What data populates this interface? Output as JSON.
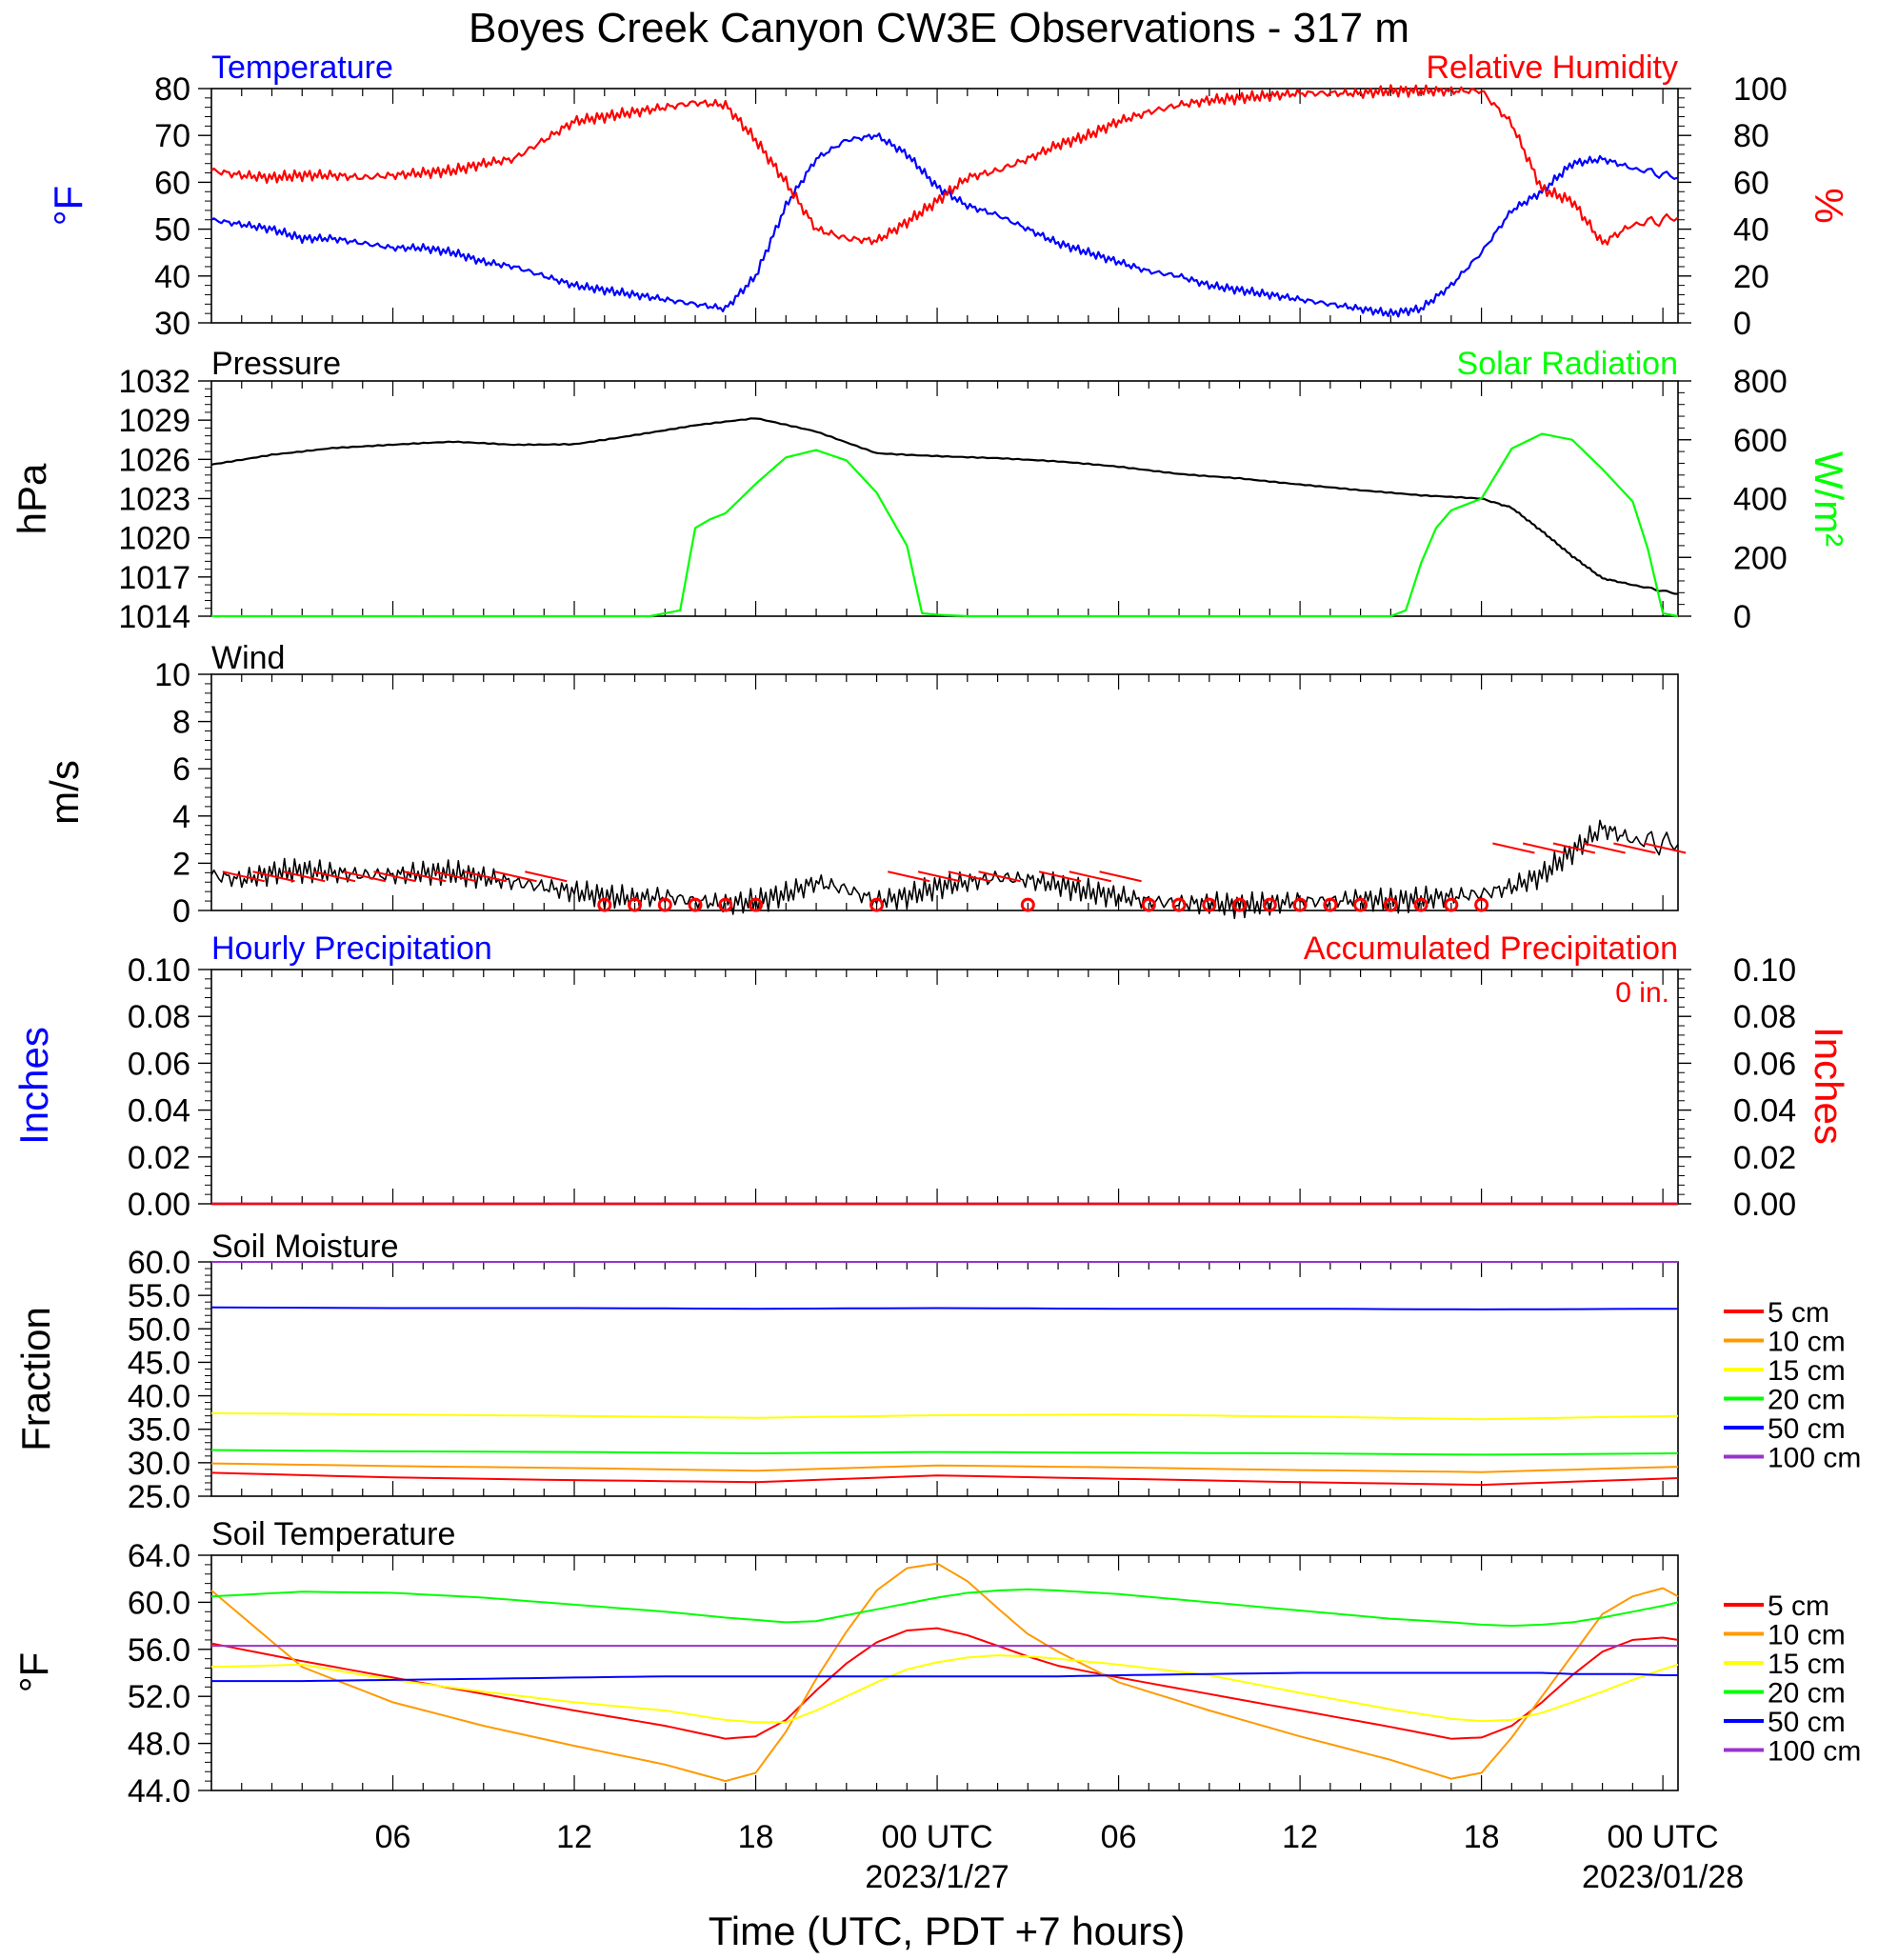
{
  "title": "Boyes Creek Canyon CW3E Observations - 317 m",
  "x_axis": {
    "label": "Time (UTC, PDT +7 hours)",
    "ticks": [
      {
        "hour": 6,
        "label": "06",
        "sub": ""
      },
      {
        "hour": 12,
        "label": "12",
        "sub": ""
      },
      {
        "hour": 18,
        "label": "18",
        "sub": ""
      },
      {
        "hour": 24,
        "label": "00 UTC",
        "sub": "2023/1/27"
      },
      {
        "hour": 30,
        "label": "06",
        "sub": ""
      },
      {
        "hour": 36,
        "label": "12",
        "sub": ""
      },
      {
        "hour": 42,
        "label": "18",
        "sub": ""
      },
      {
        "hour": 48,
        "label": "00 UTC",
        "sub": "2023/01/28"
      }
    ]
  },
  "colors": {
    "temperature": "#0000ff",
    "humidity": "#ff0000",
    "pressure": "#000000",
    "solar": "#00ff00",
    "wind": "#000000",
    "barb": "#ff0000",
    "precip_hourly": "#0000ff",
    "precip_accum": "#ff0000",
    "depth": [
      "#ff0000",
      "#ff9900",
      "#ffff00",
      "#00ff00",
      "#0000ff",
      "#9933cc"
    ]
  },
  "panels": {
    "temp_rh": {
      "title_left": "Temperature",
      "title_right": "Relative Humidity",
      "ylabel_left": "°F",
      "ylabel_right": "%",
      "left_ticks": [
        "80",
        "70",
        "60",
        "50",
        "40",
        "30"
      ],
      "right_ticks": [
        "100",
        "80",
        "60",
        "40",
        "20",
        "0"
      ]
    },
    "pressure_solar": {
      "title_left": "Pressure",
      "title_right": "Solar Radiation",
      "ylabel_left": "hPa",
      "ylabel_right": "W/m²",
      "left_ticks": [
        "1032",
        "1029",
        "1026",
        "1023",
        "1020",
        "1017",
        "1014"
      ],
      "right_ticks": [
        "800",
        "600",
        "400",
        "200",
        "0"
      ]
    },
    "wind": {
      "title_left": "Wind",
      "ylabel_left": "m/s",
      "left_ticks": [
        "10",
        "8",
        "6",
        "4",
        "2",
        "0"
      ]
    },
    "precip": {
      "title_left": "Hourly Precipitation",
      "title_right": "Accumulated Precipitation",
      "accum_total": "0 in.",
      "ylabel_left": "Inches",
      "ylabel_right": "Inches",
      "left_ticks": [
        "0.10",
        "0.08",
        "0.06",
        "0.04",
        "0.02",
        "0.00"
      ],
      "right_ticks": [
        "0.10",
        "0.08",
        "0.06",
        "0.04",
        "0.02",
        "0.00"
      ]
    },
    "soil_moisture": {
      "title_left": "Soil Moisture",
      "ylabel_left": "Fraction",
      "left_ticks": [
        "60.0",
        "55.0",
        "50.0",
        "45.0",
        "40.0",
        "35.0",
        "30.0",
        "25.0"
      ],
      "legend": [
        "5 cm",
        "10 cm",
        "15 cm",
        "20 cm",
        "50 cm",
        "100 cm"
      ]
    },
    "soil_temp": {
      "title_left": "Soil Temperature",
      "ylabel_left": "°F",
      "left_ticks": [
        "64.0",
        "60.0",
        "56.0",
        "52.0",
        "48.0",
        "44.0"
      ],
      "legend": [
        "5 cm",
        "10 cm",
        "15 cm",
        "20 cm",
        "50 cm",
        "100 cm"
      ]
    }
  },
  "chart_data": [
    {
      "type": "line",
      "title": "Temperature",
      "ylabel": "°F",
      "ylim": [
        30,
        80
      ],
      "x_hours": [
        0,
        1,
        2,
        3,
        4,
        5,
        6,
        7,
        8,
        9,
        10,
        11,
        12,
        13,
        14,
        15,
        16,
        17,
        18,
        19,
        20,
        21,
        22,
        23,
        24,
        25,
        26,
        27,
        28,
        29,
        30,
        31,
        32,
        33,
        34,
        35,
        36,
        37,
        38,
        39,
        40,
        41,
        42,
        43,
        44,
        45,
        46,
        47,
        48.5
      ],
      "series": [
        {
          "name": "Temperature",
          "values": [
            52,
            51,
            50,
            48,
            48,
            47,
            46,
            46,
            45,
            43,
            42,
            40,
            38,
            37,
            36,
            35,
            34,
            33,
            40,
            55,
            65,
            69,
            70,
            66,
            59,
            55,
            53,
            50,
            47,
            45,
            43,
            41,
            40,
            38,
            37,
            36,
            35,
            34,
            33,
            32,
            33,
            38,
            45,
            54,
            58,
            64,
            65,
            63,
            61
          ]
        }
      ]
    },
    {
      "type": "line",
      "title": "Relative Humidity",
      "ylabel": "%",
      "ylim": [
        0,
        100
      ],
      "x_hours": [
        0,
        1,
        2,
        3,
        4,
        5,
        6,
        7,
        8,
        9,
        10,
        11,
        12,
        13,
        14,
        15,
        16,
        17,
        18,
        19,
        20,
        21,
        22,
        23,
        24,
        25,
        26,
        27,
        28,
        29,
        30,
        31,
        32,
        33,
        34,
        35,
        36,
        37,
        38,
        39,
        40,
        41,
        42,
        43,
        44,
        45,
        46,
        47,
        48.5
      ],
      "series": [
        {
          "name": "Relative Humidity",
          "values": [
            65,
            63,
            62,
            63,
            63,
            62,
            63,
            64,
            65,
            68,
            70,
            78,
            86,
            88,
            90,
            92,
            94,
            93,
            78,
            60,
            40,
            36,
            35,
            43,
            52,
            62,
            65,
            70,
            76,
            80,
            86,
            90,
            93,
            95,
            96,
            97,
            98,
            98,
            98,
            99,
            99,
            99,
            99,
            85,
            57,
            52,
            34,
            42,
            45
          ]
        }
      ]
    },
    {
      "type": "line",
      "title": "Pressure",
      "ylabel": "hPa",
      "ylim": [
        1014,
        1032
      ],
      "x_hours": [
        0,
        2,
        4,
        6,
        8,
        10,
        12,
        14,
        16,
        18,
        20,
        22,
        24,
        26,
        28,
        30,
        32,
        34,
        36,
        38,
        40,
        42,
        43,
        44,
        45,
        46,
        47,
        48.5
      ],
      "series": [
        {
          "name": "Pressure",
          "values": [
            1025.6,
            1026.4,
            1026.9,
            1027.1,
            1027.3,
            1027.1,
            1027.2,
            1027.9,
            1028.6,
            1029.1,
            1028.1,
            1026.5,
            1026.3,
            1026.1,
            1025.8,
            1025.4,
            1024.9,
            1024.6,
            1024.1,
            1023.6,
            1023.2,
            1023.0,
            1022.3,
            1020.5,
            1018.6,
            1016.9,
            1016.4,
            1015.7
          ]
        }
      ]
    },
    {
      "type": "area",
      "title": "Solar Radiation",
      "ylabel": "W/m²",
      "ylim": [
        0,
        800
      ],
      "x_hours": [
        0,
        14.5,
        15.5,
        16,
        16.5,
        17,
        18,
        19,
        20,
        21,
        22,
        23,
        23.5,
        24,
        25,
        39,
        39.5,
        40,
        40.5,
        41,
        42,
        43,
        44,
        45,
        46,
        47,
        47.5,
        48,
        48.5
      ],
      "series": [
        {
          "name": "Solar Radiation",
          "values": [
            0,
            0,
            20,
            300,
            330,
            350,
            450,
            540,
            565,
            530,
            420,
            240,
            10,
            5,
            0,
            0,
            20,
            180,
            300,
            360,
            400,
            570,
            620,
            600,
            500,
            390,
            230,
            10,
            0
          ]
        }
      ]
    },
    {
      "type": "line",
      "title": "Wind",
      "ylabel": "m/s",
      "ylim": [
        0,
        10
      ],
      "x_hours": [
        0,
        1,
        2,
        3,
        4,
        5,
        6,
        7,
        8,
        9,
        10,
        11,
        12,
        13,
        14,
        15,
        16,
        17,
        18,
        19,
        20,
        21,
        22,
        23,
        24,
        25,
        26,
        27,
        28,
        29,
        30,
        31,
        32,
        33,
        34,
        35,
        36,
        37,
        38,
        39,
        40,
        41,
        42,
        43,
        44,
        45,
        46,
        47,
        48.5
      ],
      "series": [
        {
          "name": "Wind speed",
          "values": [
            1.5,
            1.3,
            1.6,
            1.7,
            1.6,
            1.5,
            1.5,
            1.6,
            1.6,
            1.4,
            1.2,
            1.0,
            0.8,
            0.6,
            0.5,
            0.6,
            0.4,
            0.3,
            0.4,
            0.7,
            1.2,
            0.9,
            0.4,
            0.6,
            1.0,
            1.2,
            1.4,
            1.3,
            1.1,
            0.8,
            0.6,
            0.4,
            0.3,
            0.3,
            0.2,
            0.3,
            0.4,
            0.4,
            0.5,
            0.4,
            0.5,
            0.6,
            0.7,
            1.0,
            1.5,
            2.5,
            3.5,
            3.0,
            2.8
          ]
        }
      ]
    },
    {
      "type": "line",
      "title": "Hourly Precipitation",
      "ylabel": "Inches",
      "ylim": [
        0,
        0.1
      ],
      "x_hours": [
        0,
        48.5
      ],
      "series": [
        {
          "name": "Hourly Precipitation",
          "values": [
            0,
            0
          ]
        },
        {
          "name": "Accumulated Precipitation",
          "values": [
            0,
            0
          ]
        }
      ]
    },
    {
      "type": "line",
      "title": "Soil Moisture",
      "ylabel": "Fraction",
      "ylim": [
        25,
        60
      ],
      "x_hours": [
        0,
        6,
        12,
        18,
        24,
        30,
        36,
        42,
        48.5
      ],
      "series": [
        {
          "name": "5 cm",
          "values": [
            28.5,
            27.8,
            27.4,
            27.1,
            28.1,
            27.6,
            27.1,
            26.7,
            27.7
          ]
        },
        {
          "name": "10 cm",
          "values": [
            29.9,
            29.5,
            29.2,
            28.8,
            29.6,
            29.3,
            28.9,
            28.6,
            29.4
          ]
        },
        {
          "name": "15 cm",
          "values": [
            37.4,
            37.2,
            37.0,
            36.7,
            37.1,
            37.2,
            36.9,
            36.5,
            37.0
          ]
        },
        {
          "name": "20 cm",
          "values": [
            31.9,
            31.7,
            31.6,
            31.4,
            31.6,
            31.5,
            31.4,
            31.2,
            31.4
          ]
        },
        {
          "name": "50 cm",
          "values": [
            53.2,
            53.1,
            53.1,
            53.0,
            53.1,
            53.0,
            53.0,
            52.9,
            53.0
          ]
        },
        {
          "name": "100 cm",
          "values": [
            60.0,
            60.0,
            60.0,
            60.0,
            60.0,
            60.0,
            60.0,
            60.0,
            60.0
          ]
        }
      ]
    },
    {
      "type": "line",
      "title": "Soil Temperature",
      "ylabel": "°F",
      "ylim": [
        44,
        64
      ],
      "x_hours": [
        0,
        3,
        6,
        9,
        12,
        15,
        17,
        18,
        19,
        20,
        21,
        22,
        23,
        24,
        25,
        26,
        27,
        28,
        30,
        33,
        36,
        39,
        41,
        42,
        43,
        44,
        45,
        46,
        47,
        48,
        48.5
      ],
      "series": [
        {
          "name": "5 cm",
          "values": [
            56.5,
            55.0,
            53.6,
            52.2,
            50.8,
            49.5,
            48.4,
            48.6,
            50.0,
            52.5,
            54.8,
            56.6,
            57.6,
            57.8,
            57.2,
            56.3,
            55.4,
            54.6,
            53.6,
            52.2,
            50.8,
            49.4,
            48.4,
            48.5,
            49.5,
            51.5,
            53.8,
            55.8,
            56.8,
            57.0,
            56.8
          ]
        },
        {
          "name": "10 cm",
          "values": [
            61.0,
            54.5,
            51.5,
            49.5,
            47.8,
            46.2,
            44.8,
            45.5,
            49.0,
            53.5,
            57.5,
            61.0,
            62.9,
            63.3,
            61.8,
            59.5,
            57.3,
            55.8,
            53.2,
            50.8,
            48.6,
            46.6,
            45.0,
            45.5,
            48.5,
            52.0,
            55.5,
            59.0,
            60.5,
            61.2,
            60.5
          ]
        },
        {
          "name": "15 cm",
          "values": [
            54.5,
            54.7,
            53.4,
            52.4,
            51.5,
            50.8,
            50.0,
            49.8,
            49.8,
            50.8,
            52.0,
            53.2,
            54.3,
            54.9,
            55.3,
            55.5,
            55.4,
            55.2,
            54.7,
            53.8,
            52.3,
            50.9,
            50.1,
            49.9,
            50.0,
            50.6,
            51.5,
            52.4,
            53.4,
            54.3,
            54.7
          ]
        },
        {
          "name": "20 cm",
          "values": [
            60.5,
            60.9,
            60.8,
            60.4,
            59.8,
            59.2,
            58.7,
            58.5,
            58.3,
            58.4,
            58.9,
            59.4,
            59.9,
            60.4,
            60.8,
            61.0,
            61.1,
            61.0,
            60.7,
            60.0,
            59.3,
            58.6,
            58.3,
            58.1,
            58.0,
            58.1,
            58.3,
            58.7,
            59.2,
            59.7,
            60.0
          ]
        },
        {
          "name": "50 cm",
          "values": [
            53.3,
            53.3,
            53.4,
            53.5,
            53.6,
            53.7,
            53.7,
            53.7,
            53.7,
            53.7,
            53.7,
            53.7,
            53.7,
            53.7,
            53.7,
            53.7,
            53.7,
            53.7,
            53.8,
            53.9,
            54.0,
            54.0,
            54.0,
            54.0,
            54.0,
            54.0,
            53.9,
            53.9,
            53.9,
            53.8,
            53.8
          ]
        },
        {
          "name": "100 cm",
          "values": [
            56.3,
            56.3,
            56.3,
            56.3,
            56.3,
            56.3,
            56.3,
            56.3,
            56.3,
            56.3,
            56.3,
            56.3,
            56.3,
            56.3,
            56.3,
            56.3,
            56.3,
            56.3,
            56.3,
            56.3,
            56.3,
            56.3,
            56.3,
            56.3,
            56.3,
            56.3,
            56.3,
            56.3,
            56.3,
            56.3,
            56.3
          ]
        }
      ]
    }
  ]
}
